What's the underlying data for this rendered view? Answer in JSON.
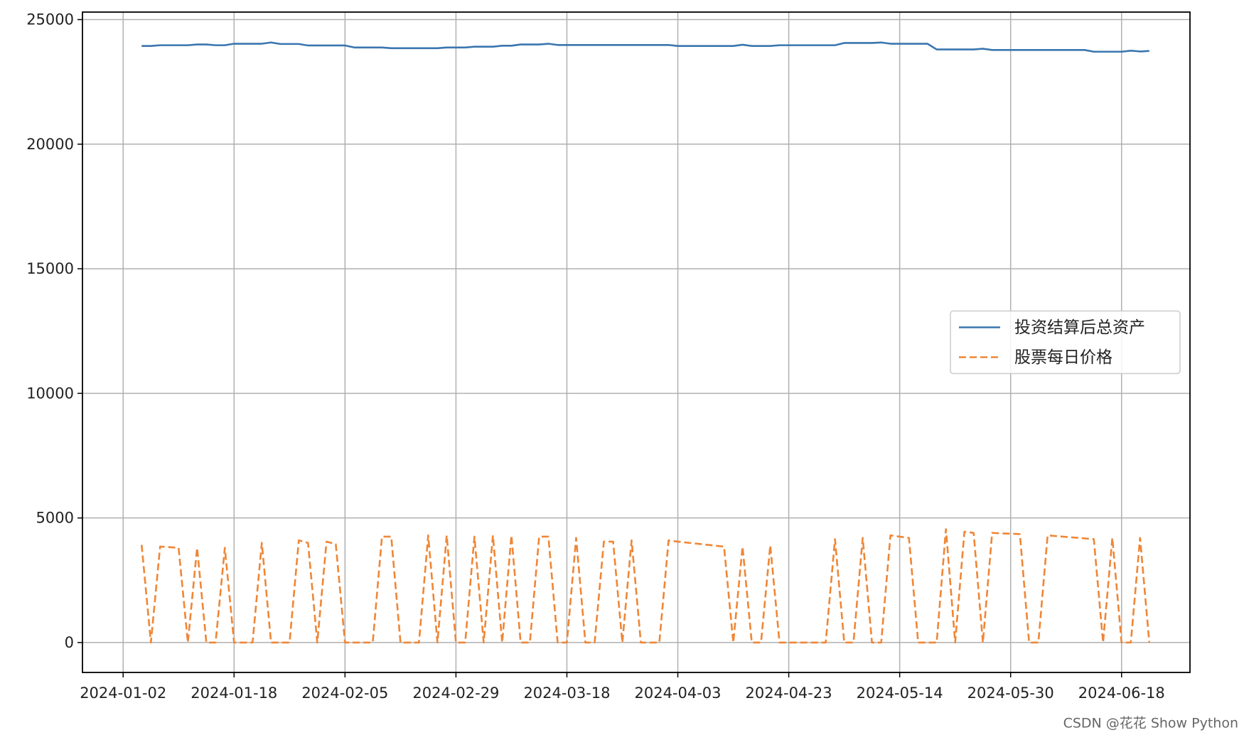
{
  "chart_data": {
    "type": "line",
    "categories": [
      "2024-01-02",
      null,
      null,
      null,
      null,
      null,
      null,
      null,
      null,
      null,
      null,
      null,
      "2024-01-18",
      null,
      null,
      null,
      null,
      null,
      null,
      null,
      null,
      null,
      null,
      null,
      "2024-02-05",
      null,
      null,
      null,
      null,
      null,
      null,
      null,
      null,
      null,
      null,
      null,
      "2024-02-29",
      null,
      null,
      null,
      null,
      null,
      null,
      null,
      null,
      null,
      null,
      null,
      "2024-03-18",
      null,
      null,
      null,
      null,
      null,
      null,
      null,
      null,
      null,
      null,
      null,
      "2024-04-03",
      null,
      null,
      null,
      null,
      null,
      null,
      null,
      null,
      null,
      null,
      null,
      "2024-04-23",
      null,
      null,
      null,
      null,
      null,
      null,
      null,
      null,
      null,
      null,
      null,
      "2024-05-14",
      null,
      null,
      null,
      null,
      null,
      null,
      null,
      null,
      null,
      null,
      null,
      "2024-05-30",
      null,
      null,
      null,
      null,
      null,
      null,
      null,
      null,
      null,
      null,
      null,
      "2024-06-18",
      null,
      null,
      null
    ],
    "series": [
      {
        "name": "投资结算后总资产",
        "color": "#3a76af",
        "style": "solid",
        "values": [
          null,
          null,
          23940,
          23940,
          23970,
          23970,
          23970,
          23970,
          24000,
          24000,
          23970,
          23970,
          24030,
          24030,
          24030,
          24030,
          24080,
          24020,
          24020,
          24020,
          23960,
          23960,
          23960,
          23960,
          23960,
          23880,
          23880,
          23880,
          23880,
          23850,
          23850,
          23850,
          23850,
          23850,
          23850,
          23880,
          23880,
          23880,
          23910,
          23910,
          23910,
          23950,
          23950,
          24000,
          24000,
          24000,
          24030,
          23980,
          23980,
          23980,
          23980,
          23980,
          23980,
          23980,
          23980,
          23980,
          23980,
          23980,
          23980,
          23980,
          23940,
          23940,
          23940,
          23940,
          23940,
          23940,
          23940,
          23990,
          23940,
          23940,
          23940,
          23970,
          23970,
          23970,
          23970,
          23970,
          23970,
          23970,
          24060,
          24060,
          24060,
          24060,
          24080,
          24030,
          24030,
          24030,
          24030,
          24030,
          23800,
          23800,
          23800,
          23800,
          23800,
          23830,
          23780,
          23780,
          23780,
          23780,
          23780,
          23780,
          23780,
          23780,
          23780,
          23780,
          23780,
          23710,
          23710,
          23710,
          23710,
          23750,
          23720,
          23740
        ]
      },
      {
        "name": "股票每日价格",
        "color": "#ef8636",
        "style": "dashed",
        "values": [
          null,
          null,
          3920,
          0,
          3850,
          3830,
          3800,
          0,
          3800,
          0,
          0,
          3800,
          0,
          0,
          0,
          4000,
          0,
          0,
          0,
          4100,
          4000,
          0,
          4050,
          3950,
          0,
          0,
          0,
          0,
          4250,
          4250,
          0,
          0,
          0,
          4300,
          0,
          4300,
          0,
          0,
          4250,
          0,
          4300,
          0,
          4300,
          0,
          0,
          4250,
          4250,
          0,
          0,
          4200,
          0,
          0,
          4050,
          4050,
          0,
          4100,
          0,
          0,
          0,
          4100,
          4050,
          4010,
          3970,
          3930,
          3890,
          3850,
          0,
          3850,
          0,
          0,
          3900,
          0,
          0,
          0,
          0,
          0,
          0,
          4150,
          0,
          0,
          4200,
          0,
          0,
          4300,
          4250,
          4200,
          0,
          0,
          0,
          4550,
          0,
          4450,
          4400,
          0,
          4400,
          4380,
          4370,
          4350,
          0,
          0,
          4300,
          4270,
          4240,
          4210,
          4180,
          4150,
          0,
          4200,
          0,
          0,
          4200,
          0
        ]
      }
    ],
    "ylim": [
      -1200,
      25300
    ],
    "yticks": [
      0,
      5000,
      10000,
      15000,
      20000,
      25000
    ],
    "grid": true,
    "legend": "center right",
    "watermark": "CSDN @花花 Show Python"
  }
}
